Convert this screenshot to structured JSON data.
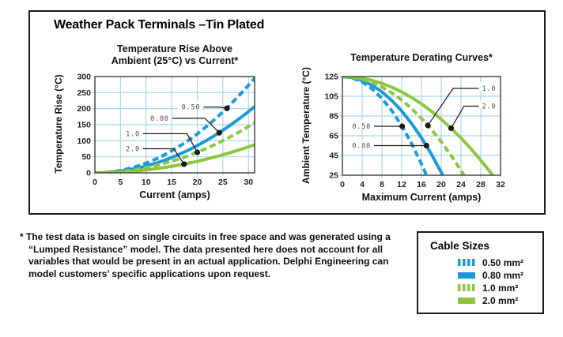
{
  "panel": {
    "title": "Weather Pack Terminals –Tin Plated"
  },
  "colors": {
    "blue": "#1d9ad6",
    "green": "#8cc63f",
    "grid": "#a9d6ee",
    "plot_bg": "#ffffff",
    "plot_border": "#3c3c3c",
    "callout_text": "#4d4d4d",
    "callout_line": "#1a1a1a"
  },
  "chart_data": [
    {
      "type": "line",
      "title_lines": [
        "Temperature Rise Above",
        "Ambient (25°C) vs Current*"
      ],
      "xlabel": "Current (amps)",
      "ylabel": "Temperature Rise (°C)",
      "xlim": [
        0,
        31.2
      ],
      "ylim": [
        0,
        300
      ],
      "xticks": [
        0,
        5,
        10,
        15,
        20,
        25,
        30
      ],
      "yticks": [
        0,
        50,
        100,
        150,
        200,
        250,
        300
      ],
      "grid": true,
      "series": [
        {
          "name": "0.50 mm²",
          "color": "blue",
          "dashed": true,
          "points": [
            [
              0,
              0
            ],
            [
              2,
              1.2
            ],
            [
              4,
              4.8
            ],
            [
              6,
              10.9
            ],
            [
              8,
              19.4
            ],
            [
              10,
              30.3
            ],
            [
              12,
              43.6
            ],
            [
              14,
              59.4
            ],
            [
              16,
              77.6
            ],
            [
              18,
              98.2
            ],
            [
              20,
              121
            ],
            [
              22,
              147
            ],
            [
              24,
              175
            ],
            [
              26,
              205
            ],
            [
              28,
              238
            ],
            [
              30,
              273
            ],
            [
              31.2,
              295
            ]
          ]
        },
        {
          "name": "0.80 mm²",
          "color": "blue",
          "dashed": false,
          "points": [
            [
              0,
              0
            ],
            [
              2,
              0.8
            ],
            [
              4,
              3.4
            ],
            [
              6,
              7.6
            ],
            [
              8,
              13.6
            ],
            [
              10,
              21.2
            ],
            [
              12,
              30.5
            ],
            [
              14,
              41.6
            ],
            [
              16,
              54.3
            ],
            [
              18,
              68.7
            ],
            [
              20,
              84.8
            ],
            [
              22,
              102.6
            ],
            [
              24,
              122.1
            ],
            [
              26,
              143.3
            ],
            [
              28,
              166.2
            ],
            [
              30,
              190.8
            ],
            [
              31.2,
              206.4
            ]
          ]
        },
        {
          "name": "1.0 mm²",
          "color": "green",
          "dashed": true,
          "points": [
            [
              0,
              0
            ],
            [
              2,
              0.6
            ],
            [
              4,
              2.6
            ],
            [
              6,
              5.8
            ],
            [
              8,
              10.2
            ],
            [
              10,
              16
            ],
            [
              12,
              23
            ],
            [
              14,
              31.4
            ],
            [
              16,
              41
            ],
            [
              18,
              51.8
            ],
            [
              20,
              64
            ],
            [
              22,
              77.4
            ],
            [
              24,
              92.2
            ],
            [
              26,
              108.2
            ],
            [
              28,
              125.4
            ],
            [
              30,
              144
            ],
            [
              31.2,
              155.8
            ]
          ]
        },
        {
          "name": "2.0 mm²",
          "color": "green",
          "dashed": false,
          "points": [
            [
              0,
              0
            ],
            [
              2,
              0.4
            ],
            [
              4,
              1.4
            ],
            [
              6,
              3.2
            ],
            [
              8,
              5.8
            ],
            [
              10,
              9
            ],
            [
              12,
              13
            ],
            [
              14,
              17.6
            ],
            [
              16,
              23
            ],
            [
              18,
              29.2
            ],
            [
              20,
              36
            ],
            [
              22,
              43.6
            ],
            [
              24,
              51.8
            ],
            [
              26,
              60.8
            ],
            [
              28,
              70.6
            ],
            [
              30,
              81
            ],
            [
              31.2,
              87.6
            ]
          ]
        }
      ],
      "callouts": [
        {
          "text": "0.50",
          "label": [
            21.2,
            205
          ],
          "elbow": [
            24.3,
            205
          ],
          "dot": [
            25.8,
            201
          ],
          "anchor": "end"
        },
        {
          "text": "0.80",
          "label": [
            15.1,
            170
          ],
          "elbow": [
            21.5,
            170
          ],
          "dot": [
            24.3,
            125
          ],
          "anchor": "end"
        },
        {
          "text": "1.0",
          "label": [
            9.4,
            122
          ],
          "elbow": [
            18,
            122
          ],
          "dot": [
            20,
            64
          ],
          "anchor": "end"
        },
        {
          "text": "2.0",
          "label": [
            9.4,
            75
          ],
          "elbow": [
            15.4,
            75
          ],
          "dot": [
            17.4,
            27
          ],
          "anchor": "end"
        }
      ]
    },
    {
      "type": "line",
      "title_lines": [
        "Temperature Derating Curves*"
      ],
      "xlabel": "Maximum Current (amps)",
      "ylabel": "Ambient Temperature (°C)",
      "xlim": [
        0,
        32
      ],
      "ylim": [
        25,
        125
      ],
      "xticks": [
        0,
        4,
        8,
        12,
        16,
        20,
        24,
        28,
        32
      ],
      "yticks": [
        25,
        45,
        65,
        85,
        105,
        125
      ],
      "grid": true,
      "series": [
        {
          "name": "0.50 mm²",
          "color": "blue",
          "dashed": true,
          "points": [
            [
              0,
              125
            ],
            [
              2,
              123.6
            ],
            [
              4,
              119.5
            ],
            [
              6,
              112.5
            ],
            [
              8,
              102.9
            ],
            [
              10,
              90.4
            ],
            [
              12,
              75.2
            ],
            [
              14,
              57.2
            ],
            [
              16,
              36.4
            ],
            [
              17,
              25
            ]
          ]
        },
        {
          "name": "0.80 mm²",
          "color": "blue",
          "dashed": false,
          "points": [
            [
              0,
              125
            ],
            [
              2,
              124
            ],
            [
              4,
              121.1
            ],
            [
              6,
              116.3
            ],
            [
              8,
              109.5
            ],
            [
              10,
              100.7
            ],
            [
              12,
              90.1
            ],
            [
              14,
              77.4
            ],
            [
              16,
              62.9
            ],
            [
              18,
              46.4
            ],
            [
              20,
              27.9
            ],
            [
              20.3,
              25
            ]
          ]
        },
        {
          "name": "1.0 mm²",
          "color": "green",
          "dashed": true,
          "points": [
            [
              0,
              125
            ],
            [
              2,
              124.3
            ],
            [
              4,
              122.4
            ],
            [
              6,
              119.1
            ],
            [
              8,
              114.4
            ],
            [
              10,
              108.5
            ],
            [
              12,
              101.2
            ],
            [
              14,
              92.6
            ],
            [
              16,
              82.7
            ],
            [
              18,
              71.4
            ],
            [
              20,
              58.9
            ],
            [
              22,
              45
            ],
            [
              24,
              29.8
            ],
            [
              24.6,
              25
            ]
          ]
        },
        {
          "name": "2.0 mm²",
          "color": "green",
          "dashed": false,
          "points": [
            [
              0,
              125
            ],
            [
              2,
              124.6
            ],
            [
              4,
              123.3
            ],
            [
              6,
              121.1
            ],
            [
              8,
              118.1
            ],
            [
              10,
              114.2
            ],
            [
              12,
              109.4
            ],
            [
              14,
              103.8
            ],
            [
              16,
              97.3
            ],
            [
              18,
              89.9
            ],
            [
              20,
              81.7
            ],
            [
              22,
              72.5
            ],
            [
              24,
              62.7
            ],
            [
              26,
              51.8
            ],
            [
              28,
              40.2
            ],
            [
              30,
              27.6
            ],
            [
              30.4,
              25
            ]
          ]
        }
      ],
      "callouts": [
        {
          "text": "0.50",
          "label": [
            6.4,
            74.6
          ],
          "elbow": [
            9,
            74.6
          ],
          "dot": [
            12.1,
            74.6
          ],
          "anchor": "end"
        },
        {
          "text": "0.80",
          "label": [
            6.4,
            55
          ],
          "elbow": [
            9,
            55
          ],
          "dot": [
            17,
            55
          ],
          "anchor": "end"
        },
        {
          "text": "1.0",
          "label": [
            27.6,
            113
          ],
          "elbow": [
            22.4,
            113
          ],
          "dot": [
            17.3,
            75.5
          ],
          "anchor": "start"
        },
        {
          "text": "2.0",
          "label": [
            27.6,
            95
          ],
          "elbow": [
            24.6,
            95
          ],
          "dot": [
            22,
            72.6
          ],
          "anchor": "start"
        }
      ]
    }
  ],
  "footnote": {
    "marker": "*",
    "text": "The test data is based on single circuits in free space and was generated using a “Lumped Resistance” model. The data presented here does not account for all variables that would be present in an actual application. Delphi Engineering can model customers’ specific applications upon request."
  },
  "legend": {
    "title": "Cable Sizes",
    "items": [
      {
        "label": "0.50 mm²",
        "style": "dashed",
        "color": "blue"
      },
      {
        "label": "0.80 mm²",
        "style": "solid",
        "color": "blue"
      },
      {
        "label": "1.0 mm²",
        "style": "dashed",
        "color": "green"
      },
      {
        "label": "2.0 mm²",
        "style": "solid",
        "color": "green"
      }
    ]
  }
}
